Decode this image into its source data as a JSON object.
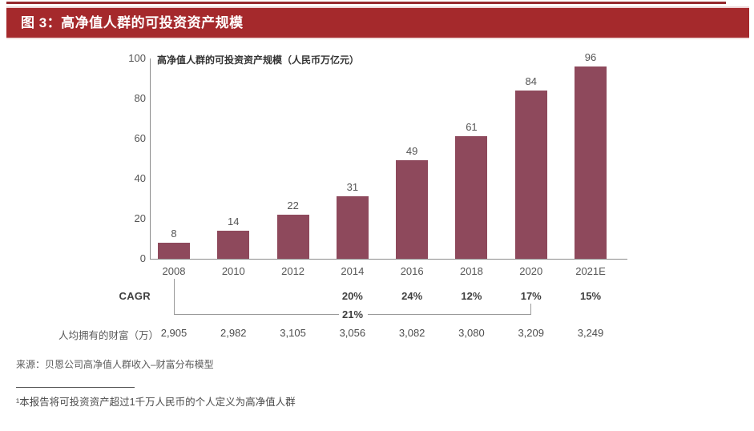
{
  "figure_header": {
    "title": "图 3：高净值人群的可投资资产规模"
  },
  "colors": {
    "header_red": "#A5292C",
    "header_rule_red": "#952A2E",
    "bar": "#8E495C",
    "axis_gray": "#8C8C8C"
  },
  "chart_data": {
    "type": "bar",
    "title": "高净值人群的可投资资产规模（人民币万亿元）",
    "xlabel": "",
    "ylabel": "",
    "categories": [
      "2008",
      "2010",
      "2012",
      "2014",
      "2016",
      "2018",
      "2020",
      "2021E"
    ],
    "values": [
      8,
      14,
      22,
      31,
      49,
      61,
      84,
      96
    ],
    "ylim": [
      0,
      100
    ],
    "yticks": [
      0,
      20,
      40,
      60,
      80,
      100
    ],
    "grid": false,
    "legend": null,
    "cagr_row": {
      "label": "CAGR",
      "values": [
        "",
        "",
        "",
        "20%",
        "24%",
        "12%",
        "17%",
        "15%"
      ]
    },
    "cagr_bracket": {
      "label": "21%",
      "from_category": "2008",
      "to_category": "2020"
    },
    "wealth_row": {
      "label": "人均拥有的财富（万）",
      "values": [
        "2,905",
        "2,982",
        "3,105",
        "3,056",
        "3,082",
        "3,080",
        "3,209",
        "3,249"
      ]
    }
  },
  "source": "来源：贝恩公司高净值人群收入–财富分布模型",
  "footnote": "¹本报告将可投资资产超过1千万人民币的个人定义为高净值人群"
}
